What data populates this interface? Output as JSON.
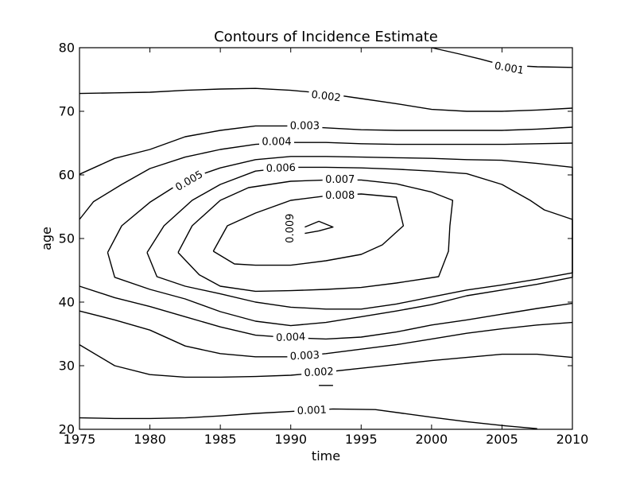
{
  "chart_data": {
    "type": "contour",
    "title": "Contours of Incidence Estimate",
    "xlabel": "time",
    "ylabel": "age",
    "xlim": [
      1975,
      2010
    ],
    "ylim": [
      20,
      80
    ],
    "xticks": [
      1975,
      1980,
      1985,
      1990,
      1995,
      2000,
      2005,
      2010
    ],
    "yticks": [
      20,
      30,
      40,
      50,
      60,
      70,
      80
    ],
    "grid": false,
    "contours": [
      {
        "level": "0.001",
        "segments": [
          [
            [
              1975,
              21.8
            ],
            [
              1977.5,
              21.7
            ],
            [
              1980,
              21.7
            ],
            [
              1982.5,
              21.8
            ],
            [
              1985,
              22.1
            ],
            [
              1987.5,
              22.5
            ],
            [
              1990,
              22.8
            ],
            [
              1993,
              23.2
            ],
            [
              1996,
              23.1
            ],
            [
              1998,
              22.5
            ],
            [
              2000,
              21.9
            ],
            [
              2002.5,
              21.2
            ],
            [
              2005,
              20.6
            ],
            [
              2007.5,
              20.1
            ]
          ],
          [
            [
              2000,
              80
            ],
            [
              2002,
              79
            ],
            [
              2003.5,
              78.2
            ],
            [
              2005,
              77.3
            ],
            [
              2007.5,
              77.0
            ],
            [
              2010,
              76.9
            ]
          ]
        ],
        "labels": [
          {
            "text": "0.001",
            "x": 1991.5,
            "y": 22.9,
            "angle": -2
          },
          {
            "text": "0.001",
            "x": 2005.5,
            "y": 76.7,
            "angle": 10
          }
        ]
      },
      {
        "level": "0.002",
        "segments": [
          [
            [
              1975,
              72.8
            ],
            [
              1977.5,
              72.9
            ],
            [
              1980,
              73.0
            ],
            [
              1982.5,
              73.3
            ],
            [
              1985,
              73.5
            ],
            [
              1987.5,
              73.6
            ],
            [
              1990,
              73.3
            ],
            [
              1992.5,
              72.8
            ],
            [
              1995,
              72.0
            ],
            [
              1997.5,
              71.2
            ],
            [
              2000,
              70.3
            ],
            [
              2002.5,
              70.0
            ],
            [
              2005,
              70.0
            ],
            [
              2007.5,
              70.2
            ],
            [
              2010,
              70.5
            ]
          ],
          [
            [
              1975,
              33.3
            ],
            [
              1977.5,
              30.0
            ],
            [
              1980,
              28.6
            ],
            [
              1982.5,
              28.2
            ],
            [
              1985,
              28.2
            ],
            [
              1987.5,
              28.3
            ],
            [
              1990,
              28.5
            ],
            [
              1992.5,
              29.0
            ],
            [
              1995,
              29.6
            ],
            [
              1997.5,
              30.2
            ],
            [
              2000,
              30.8
            ],
            [
              2002.5,
              31.3
            ],
            [
              2005,
              31.8
            ],
            [
              2007.5,
              31.8
            ],
            [
              2010,
              31.3
            ]
          ]
        ],
        "labels": [
          {
            "text": "0.002",
            "x": 1992.5,
            "y": 72.3,
            "angle": 7
          },
          {
            "text": "0.002",
            "x": 1992,
            "y": 28.9,
            "angle": -3
          }
        ]
      },
      {
        "level": "0.003",
        "segments": [
          [
            [
              1975,
              60.1
            ],
            [
              1977.5,
              62.6
            ],
            [
              1980,
              64.0
            ],
            [
              1982.5,
              66.0
            ],
            [
              1985,
              67.0
            ],
            [
              1987.5,
              67.7
            ],
            [
              1990,
              67.7
            ],
            [
              1992.5,
              67.4
            ],
            [
              1995,
              67.1
            ],
            [
              1997.5,
              67.0
            ],
            [
              2000,
              67.0
            ],
            [
              2002.5,
              67.0
            ],
            [
              2005,
              67.0
            ],
            [
              2007.5,
              67.2
            ],
            [
              2010,
              67.5
            ]
          ],
          [
            [
              1975,
              38.6
            ],
            [
              1977.5,
              37.2
            ],
            [
              1980,
              35.6
            ],
            [
              1982.5,
              33.1
            ],
            [
              1985,
              31.9
            ],
            [
              1987.5,
              31.4
            ],
            [
              1990,
              31.4
            ],
            [
              1992.5,
              31.9
            ],
            [
              1995,
              32.6
            ],
            [
              1997.5,
              33.3
            ],
            [
              2000,
              34.2
            ],
            [
              2002.5,
              35.1
            ],
            [
              2005,
              35.8
            ],
            [
              2007.5,
              36.4
            ],
            [
              2010,
              36.8
            ]
          ]
        ],
        "labels": [
          {
            "text": "0.003",
            "x": 1991,
            "y": 67.6,
            "angle": 0
          },
          {
            "text": "0.003",
            "x": 1991,
            "y": 31.5,
            "angle": -3
          }
        ]
      },
      {
        "level": "0.004",
        "segments": [
          [
            [
              1975,
              53.0
            ],
            [
              1976,
              55.8
            ],
            [
              1978,
              58.5
            ],
            [
              1980,
              61.0
            ],
            [
              1982.5,
              62.8
            ],
            [
              1985,
              64.0
            ],
            [
              1987.5,
              64.8
            ],
            [
              1990,
              65.1
            ],
            [
              1992.5,
              65.1
            ],
            [
              1995,
              64.9
            ],
            [
              1997.5,
              64.8
            ],
            [
              2000,
              64.8
            ],
            [
              2002.5,
              64.8
            ],
            [
              2005,
              64.8
            ],
            [
              2007.5,
              64.9
            ],
            [
              2010,
              65.0
            ]
          ],
          [
            [
              1975,
              42.5
            ],
            [
              1977.5,
              40.7
            ],
            [
              1980,
              39.3
            ],
            [
              1982.5,
              37.7
            ],
            [
              1985,
              36.1
            ],
            [
              1987.5,
              34.8
            ],
            [
              1990,
              34.4
            ],
            [
              1992.5,
              34.2
            ],
            [
              1995,
              34.5
            ],
            [
              1997.5,
              35.3
            ],
            [
              2000,
              36.4
            ],
            [
              2002.5,
              37.2
            ],
            [
              2005,
              38.1
            ],
            [
              2007.5,
              39.0
            ],
            [
              2010,
              39.8
            ]
          ]
        ],
        "labels": [
          {
            "text": "0.004",
            "x": 1989,
            "y": 65.1,
            "angle": 0
          },
          {
            "text": "0.004",
            "x": 1990,
            "y": 34.4,
            "angle": -2
          }
        ]
      },
      {
        "level": "0.005",
        "segments": [
          [
            [
              1993,
              26.9
            ],
            [
              1992,
              26.9
            ]
          ],
          [
            [
              1977,
              47.8
            ],
            [
              1978,
              52.0
            ],
            [
              1980,
              55.7
            ],
            [
              1982.5,
              59.2
            ],
            [
              1985,
              61.1
            ],
            [
              1987.5,
              62.4
            ],
            [
              1990,
              62.9
            ],
            [
              1992.5,
              62.9
            ],
            [
              1995,
              62.8
            ],
            [
              1997.5,
              62.7
            ],
            [
              2000,
              62.6
            ],
            [
              2002.5,
              62.4
            ],
            [
              2005,
              62.3
            ],
            [
              2007.5,
              61.8
            ],
            [
              2010,
              61.2
            ],
            [
              2010,
              43.9
            ],
            [
              2007.5,
              42.8
            ],
            [
              2005,
              41.9
            ],
            [
              2002.5,
              41.0
            ],
            [
              2000,
              39.6
            ],
            [
              1997.5,
              38.6
            ],
            [
              1995,
              37.7
            ],
            [
              1992.5,
              36.8
            ],
            [
              1990,
              36.3
            ],
            [
              1987.5,
              37.0
            ],
            [
              1985,
              38.5
            ],
            [
              1982.5,
              40.5
            ],
            [
              1980,
              42.0
            ],
            [
              1977.5,
              43.9
            ],
            [
              1977,
              47.8
            ]
          ]
        ],
        "labels": [
          {
            "text": "0.005",
            "x": 1982.8,
            "y": 59.0,
            "angle": -30
          }
        ]
      },
      {
        "level": "0.006",
        "segments": [
          [
            [
              1979.8,
              47.8
            ],
            [
              1981,
              52.0
            ],
            [
              1983,
              56.0
            ],
            [
              1985,
              58.5
            ],
            [
              1987.5,
              60.6
            ],
            [
              1990,
              61.2
            ],
            [
              1992.5,
              61.2
            ],
            [
              1995,
              61.1
            ],
            [
              1997.5,
              60.9
            ],
            [
              2000,
              60.6
            ],
            [
              2002.5,
              60.2
            ],
            [
              2005,
              58.5
            ],
            [
              2007,
              56.0
            ],
            [
              2008,
              54.5
            ],
            [
              2010,
              53.0
            ],
            [
              2010,
              44.6
            ],
            [
              2007.5,
              43.6
            ],
            [
              2005,
              42.7
            ],
            [
              2002.5,
              41.9
            ],
            [
              2000,
              40.8
            ],
            [
              1997.5,
              39.7
            ],
            [
              1995,
              38.9
            ],
            [
              1992.5,
              38.9
            ],
            [
              1990,
              39.2
            ],
            [
              1987.5,
              40.0
            ],
            [
              1985,
              41.3
            ],
            [
              1982.5,
              42.5
            ],
            [
              1980.5,
              44.0
            ],
            [
              1979.8,
              47.8
            ]
          ]
        ],
        "labels": [
          {
            "text": "0.006",
            "x": 1989.3,
            "y": 61.0,
            "angle": -2
          }
        ]
      },
      {
        "level": "0.007",
        "segments": [
          [
            [
              1982,
              47.8
            ],
            [
              1983,
              52.0
            ],
            [
              1985,
              56.0
            ],
            [
              1987,
              58.0
            ],
            [
              1990,
              59.0
            ],
            [
              1992.5,
              59.2
            ],
            [
              1995,
              59.2
            ],
            [
              1997.5,
              58.6
            ],
            [
              2000,
              57.3
            ],
            [
              2001.5,
              56.0
            ],
            [
              2001.3,
              52.0
            ],
            [
              2001.2,
              48.0
            ],
            [
              2000.5,
              44.0
            ],
            [
              1997.5,
              43.0
            ],
            [
              1995,
              42.3
            ],
            [
              1992.5,
              42.0
            ],
            [
              1990,
              41.8
            ],
            [
              1987.5,
              41.7
            ],
            [
              1985,
              42.5
            ],
            [
              1983.5,
              44.3
            ],
            [
              1982,
              47.8
            ]
          ]
        ],
        "labels": [
          {
            "text": "0.007",
            "x": 1993.5,
            "y": 59.2,
            "angle": 0
          }
        ]
      },
      {
        "level": "0.008",
        "segments": [
          [
            [
              1984.5,
              48.0
            ],
            [
              1985.5,
              52.0
            ],
            [
              1987.5,
              54.0
            ],
            [
              1990,
              56.0
            ],
            [
              1992.5,
              56.7
            ],
            [
              1995,
              57.0
            ],
            [
              1997.5,
              56.5
            ],
            [
              1998,
              52.0
            ],
            [
              1996.5,
              49.0
            ],
            [
              1995,
              47.5
            ],
            [
              1992.5,
              46.5
            ],
            [
              1990,
              45.8
            ],
            [
              1987.5,
              45.8
            ],
            [
              1986,
              46.0
            ],
            [
              1984.5,
              48.0
            ]
          ]
        ],
        "labels": [
          {
            "text": "0.008",
            "x": 1993.5,
            "y": 56.7,
            "angle": 0
          }
        ]
      },
      {
        "level": "0.009",
        "segments": [
          [
            [
              1991,
              51.8
            ],
            [
              1992,
              52.7
            ],
            [
              1993,
              51.8
            ],
            [
              1992,
              51.2
            ],
            [
              1991,
              50.8
            ]
          ]
        ],
        "labels": [
          {
            "text": "0.009",
            "x": 1990,
            "y": 51.6,
            "angle": -90
          }
        ]
      }
    ]
  }
}
